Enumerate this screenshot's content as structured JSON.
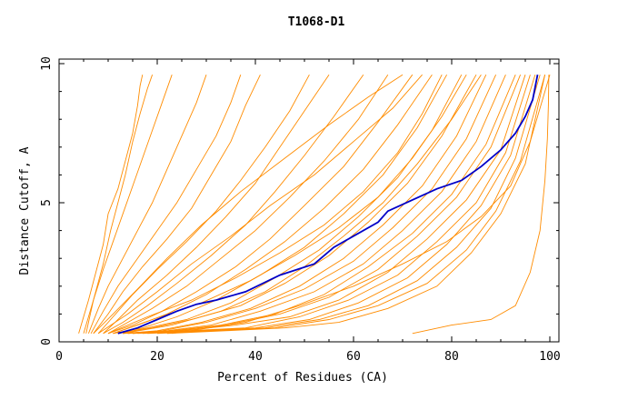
{
  "chart_data": {
    "type": "line",
    "title": "T1068-D1",
    "xlabel": "Percent of Residues (CA)",
    "ylabel": "Distance Cutoff, A",
    "xlim": [
      0,
      100
    ],
    "ylim": [
      0,
      10
    ],
    "xticks": [
      0,
      20,
      40,
      60,
      80,
      100
    ],
    "yticks": [
      0,
      5,
      10
    ],
    "grid": false,
    "legend": "none",
    "colors": {
      "models": "#ff8c00",
      "highlight": "#0000c8",
      "axis": "#000000"
    },
    "series": [
      {
        "color": "#ff8c00",
        "x": [
          4,
          6,
          7.5,
          9,
          10,
          12,
          13.5,
          15,
          16,
          16.5,
          17
        ],
        "y": [
          0.3,
          1.5,
          2.5,
          3.5,
          4.6,
          5.5,
          6.5,
          7.5,
          8.5,
          9.2,
          9.6
        ]
      },
      {
        "color": "#ff8c00",
        "x": [
          5,
          7,
          9,
          10.5,
          12,
          13.5,
          15,
          16.5,
          18,
          19
        ],
        "y": [
          0.3,
          1.5,
          2.8,
          4,
          5,
          6,
          7.2,
          8.2,
          9.1,
          9.6
        ]
      },
      {
        "color": "#ff8c00",
        "x": [
          5.5,
          7,
          9,
          11,
          13,
          15,
          17,
          19,
          21,
          23
        ],
        "y": [
          0.3,
          1.5,
          2.6,
          3.6,
          4.6,
          5.6,
          6.6,
          7.6,
          8.6,
          9.6
        ]
      },
      {
        "color": "#ff8c00",
        "x": [
          6,
          8,
          10,
          13,
          16,
          19,
          22,
          25,
          28,
          30
        ],
        "y": [
          0.3,
          1.2,
          2,
          3,
          4,
          5,
          6.2,
          7.4,
          8.6,
          9.6
        ]
      },
      {
        "color": "#ff8c00",
        "x": [
          6.5,
          9,
          12,
          16,
          20,
          24,
          28,
          32,
          35,
          37
        ],
        "y": [
          0.3,
          1.1,
          2,
          3,
          4,
          5,
          6.2,
          7.4,
          8.6,
          9.6
        ]
      },
      {
        "color": "#ff8c00",
        "x": [
          7,
          10,
          13,
          17,
          22,
          27,
          31,
          35,
          38,
          41
        ],
        "y": [
          0.3,
          1,
          1.8,
          2.7,
          3.7,
          4.8,
          6,
          7.2,
          8.5,
          9.6
        ]
      },
      {
        "color": "#ff8c00",
        "x": [
          8,
          11,
          15,
          20,
          26,
          32,
          37,
          42,
          47,
          51
        ],
        "y": [
          0.3,
          0.9,
          1.7,
          2.6,
          3.6,
          4.7,
          5.8,
          7,
          8.3,
          9.6
        ]
      },
      {
        "color": "#ff8c00",
        "x": [
          9,
          12,
          16,
          22,
          28,
          34,
          40,
          45,
          50,
          55
        ],
        "y": [
          0.3,
          0.8,
          1.5,
          2.4,
          3.4,
          4.5,
          5.7,
          7,
          8.3,
          9.6
        ]
      },
      {
        "color": "#ff8c00",
        "x": [
          9,
          13,
          18,
          24,
          31,
          38,
          44,
          50,
          56,
          62
        ],
        "y": [
          0.3,
          0.7,
          1.3,
          2.1,
          3.1,
          4.2,
          5.4,
          6.7,
          8.1,
          9.6
        ]
      },
      {
        "color": "#ff8c00",
        "x": [
          10,
          14,
          19,
          26,
          33,
          40,
          47,
          54,
          61,
          67
        ],
        "y": [
          0.3,
          0.7,
          1.2,
          2,
          3,
          4,
          5.2,
          6.5,
          8,
          9.6
        ]
      },
      {
        "color": "#ff8c00",
        "x": [
          10,
          15,
          21,
          28,
          36,
          43,
          50,
          58,
          65,
          72
        ],
        "y": [
          0.3,
          0.6,
          1.1,
          1.8,
          2.7,
          3.7,
          4.9,
          6.3,
          7.9,
          9.6
        ]
      },
      {
        "color": "#ff8c00",
        "x": [
          11,
          16,
          22,
          30,
          38,
          46,
          54,
          62,
          69,
          76
        ],
        "y": [
          0.3,
          0.6,
          1,
          1.7,
          2.6,
          3.6,
          4.8,
          6.2,
          7.8,
          9.6
        ]
      },
      {
        "color": "#ff8c00",
        "x": [
          11,
          17,
          24,
          32,
          41,
          50,
          58,
          66,
          73,
          79
        ],
        "y": [
          0.3,
          0.5,
          0.9,
          1.5,
          2.4,
          3.4,
          4.6,
          6,
          7.7,
          9.6
        ]
      },
      {
        "color": "#ff8c00",
        "x": [
          12,
          18,
          26,
          35,
          44,
          53,
          61,
          69,
          76,
          82
        ],
        "y": [
          0.3,
          0.5,
          0.8,
          1.4,
          2.3,
          3.3,
          4.5,
          5.9,
          7.6,
          9.6
        ]
      },
      {
        "color": "#ff8c00",
        "x": [
          12,
          19,
          27,
          37,
          46,
          55,
          63,
          71,
          78,
          85
        ],
        "y": [
          0.3,
          0.5,
          0.8,
          1.3,
          2.1,
          3.1,
          4.3,
          5.7,
          7.4,
          9.6
        ]
      },
      {
        "color": "#ff8c00",
        "x": [
          13,
          20,
          29,
          39,
          49,
          58,
          66,
          74,
          81,
          87
        ],
        "y": [
          0.3,
          0.4,
          0.7,
          1.2,
          2,
          3,
          4.2,
          5.6,
          7.4,
          9.6
        ]
      },
      {
        "color": "#ff8c00",
        "x": [
          13,
          21,
          30,
          40,
          50,
          60,
          68,
          76,
          83,
          89
        ],
        "y": [
          0.3,
          0.4,
          0.7,
          1.2,
          1.9,
          2.9,
          4.1,
          5.5,
          7.3,
          9.6
        ]
      },
      {
        "color": "#ff8c00",
        "x": [
          14,
          22,
          31,
          41,
          52,
          62,
          70,
          78,
          85,
          91
        ],
        "y": [
          0.3,
          0.4,
          0.6,
          1.1,
          1.8,
          2.8,
          4,
          5.4,
          7.2,
          9.6
        ]
      },
      {
        "color": "#ff8c00",
        "x": [
          14,
          23,
          33,
          44,
          54,
          63,
          72,
          80,
          87,
          93
        ],
        "y": [
          0.3,
          0.4,
          0.6,
          1,
          1.7,
          2.7,
          3.9,
          5.3,
          7.1,
          9.6
        ]
      },
      {
        "color": "#ff8c00",
        "x": [
          15,
          24,
          34,
          45,
          55,
          65,
          73,
          81,
          88,
          94
        ],
        "y": [
          0.3,
          0.4,
          0.6,
          1,
          1.6,
          2.6,
          3.8,
          5.2,
          7,
          9.6
        ]
      },
      {
        "color": "#ff8c00",
        "x": [
          15,
          25,
          36,
          47,
          57,
          67,
          75,
          83,
          90,
          95
        ],
        "y": [
          0.3,
          0.4,
          0.6,
          0.9,
          1.5,
          2.5,
          3.7,
          5.1,
          6.9,
          9.6
        ]
      },
      {
        "color": "#ff8c00",
        "x": [
          16,
          26,
          38,
          49,
          59,
          69,
          77,
          85,
          91,
          96
        ],
        "y": [
          0.3,
          0.4,
          0.5,
          0.9,
          1.5,
          2.4,
          3.6,
          5,
          6.8,
          9.6
        ]
      },
      {
        "color": "#ff8c00",
        "x": [
          17,
          28,
          40,
          51,
          61,
          71,
          79,
          86,
          92,
          97
        ],
        "y": [
          0.3,
          0.4,
          0.5,
          0.8,
          1.4,
          2.3,
          3.5,
          4.9,
          6.7,
          9.6
        ]
      },
      {
        "color": "#ff8c00",
        "x": [
          18,
          30,
          42,
          53,
          63,
          73,
          81,
          88,
          93,
          98
        ],
        "y": [
          0.3,
          0.4,
          0.5,
          0.8,
          1.3,
          2.2,
          3.4,
          4.8,
          6.6,
          9.6
        ]
      },
      {
        "color": "#ff8c00",
        "x": [
          20,
          32,
          44,
          55,
          65,
          75,
          83,
          89,
          94,
          99
        ],
        "y": [
          0.3,
          0.4,
          0.5,
          0.8,
          1.3,
          2.1,
          3.3,
          4.7,
          6.5,
          9.6
        ]
      },
      {
        "color": "#ff8c00",
        "x": [
          22,
          34,
          46,
          57,
          67,
          77,
          84,
          90,
          95,
          99
        ],
        "y": [
          0.3,
          0.4,
          0.5,
          0.7,
          1.2,
          2,
          3.2,
          4.6,
          6.4,
          9.6
        ]
      },
      {
        "color": "#ff8c00",
        "x": [
          23,
          38,
          49,
          60,
          70,
          79,
          86,
          92,
          96,
          100
        ],
        "y": [
          0.3,
          0.7,
          1.3,
          2,
          2.8,
          3.6,
          4.5,
          5.6,
          7.2,
          9.6
        ]
      },
      {
        "color": "#ff8c00",
        "x": [
          8,
          14,
          20,
          27,
          35,
          43,
          52,
          60,
          68,
          74
        ],
        "y": [
          0.3,
          1,
          1.8,
          2.8,
          3.8,
          4.9,
          6,
          7.2,
          8.4,
          9.6
        ]
      },
      {
        "color": "#ff8c00",
        "x": [
          10,
          18,
          27,
          36,
          45,
          54,
          62,
          69,
          74,
          78
        ],
        "y": [
          0.3,
          0.9,
          1.5,
          2.3,
          3.2,
          4.2,
          5.4,
          6.8,
          8.2,
          9.6
        ]
      },
      {
        "color": "#ff8c00",
        "x": [
          11,
          19,
          29,
          39,
          48,
          57,
          65,
          72,
          78,
          83
        ],
        "y": [
          0.3,
          0.8,
          1.4,
          2.2,
          3.1,
          4.1,
          5.2,
          6.6,
          8.1,
          9.6
        ]
      },
      {
        "color": "#ff8c00",
        "x": [
          13,
          23,
          33,
          42,
          50,
          58,
          66,
          73,
          80,
          86
        ],
        "y": [
          0.3,
          0.6,
          1.1,
          1.8,
          2.7,
          3.8,
          5,
          6.4,
          8,
          9.6
        ]
      },
      {
        "color": "#ff8c00",
        "x": [
          7,
          11,
          16,
          22,
          29,
          37,
          46,
          55,
          63,
          70
        ],
        "y": [
          0.3,
          1,
          1.9,
          3,
          4.2,
          5.4,
          6.6,
          7.8,
          8.8,
          9.6
        ]
      },
      {
        "color": "#ff8c00",
        "x": [
          72,
          80,
          88,
          93,
          96,
          98,
          99,
          99.5,
          99.7,
          99.8
        ],
        "y": [
          0.3,
          0.6,
          0.8,
          1.3,
          2.5,
          4,
          5.8,
          7.3,
          8.5,
          9.6
        ]
      },
      {
        "color": "#0000c8",
        "highlight": true,
        "x": [
          12,
          16,
          20,
          24,
          28,
          32,
          38,
          45,
          52,
          56,
          60,
          65,
          67,
          72,
          77,
          82,
          86,
          90,
          93,
          95,
          96.5,
          97.5
        ],
        "y": [
          0.3,
          0.5,
          0.8,
          1.1,
          1.35,
          1.5,
          1.8,
          2.4,
          2.8,
          3.4,
          3.8,
          4.3,
          4.7,
          5.1,
          5.5,
          5.8,
          6.3,
          6.9,
          7.5,
          8.1,
          8.7,
          9.6
        ]
      }
    ]
  }
}
